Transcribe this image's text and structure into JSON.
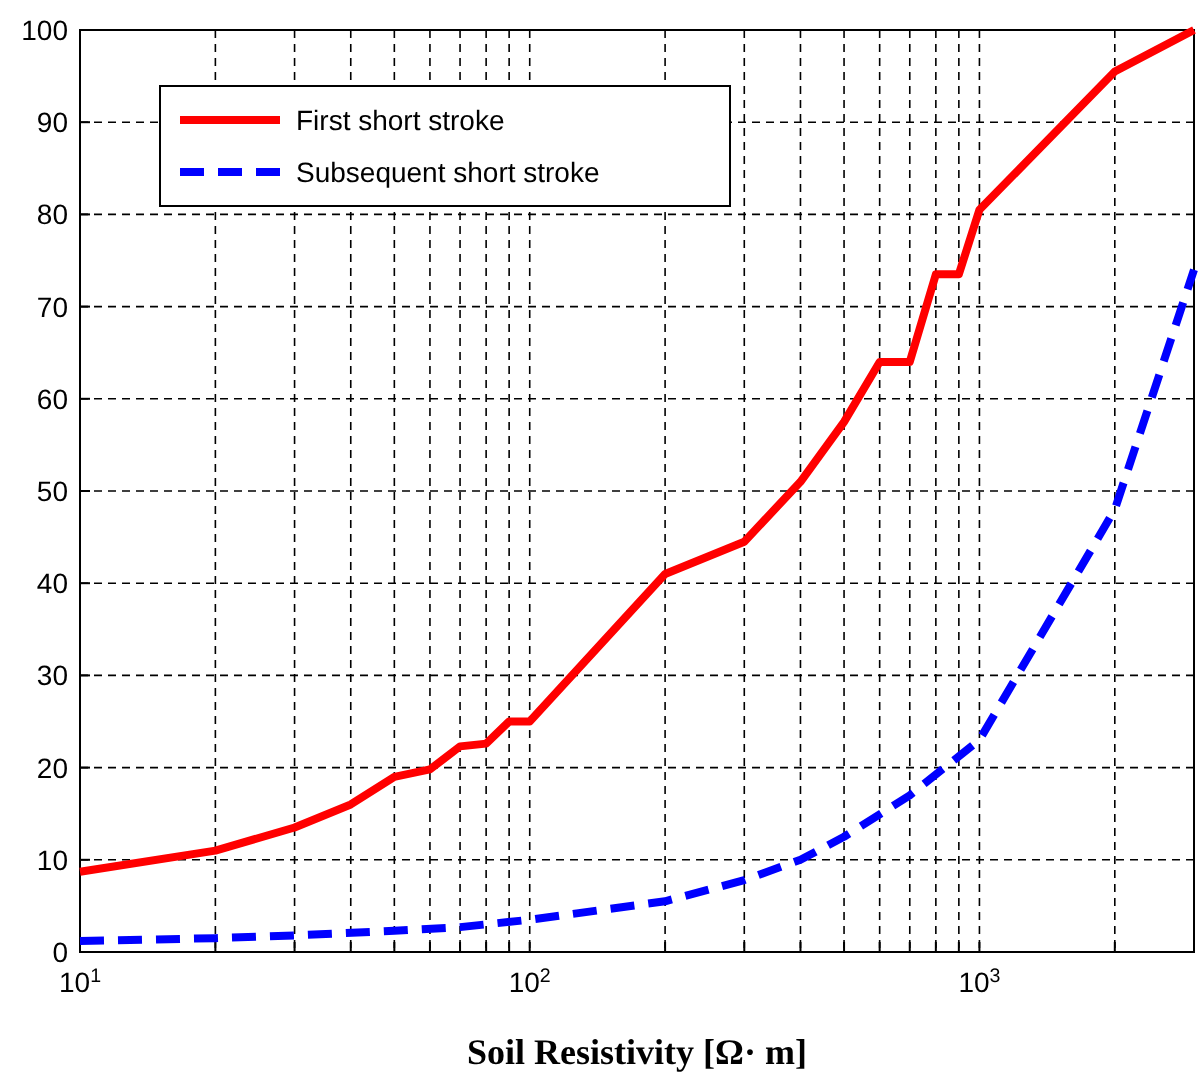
{
  "chart_data": {
    "type": "line",
    "xlabel": "Soil Resistivity [Ω· m]",
    "log": "x",
    "grid": true,
    "legend": "top left",
    "xlim": [
      10,
      3000
    ],
    "ylim": [
      0,
      100
    ],
    "xticks": [
      {
        "value": 10,
        "label": "10$^{1}$"
      },
      {
        "value": 20,
        "label": null
      },
      {
        "value": 30,
        "label": null
      },
      {
        "value": 40,
        "label": null
      },
      {
        "value": 50,
        "label": null
      },
      {
        "value": 60,
        "label": null
      },
      {
        "value": 70,
        "label": null
      },
      {
        "value": 80,
        "label": null
      },
      {
        "value": 90,
        "label": null
      },
      {
        "value": 100,
        "label": "10$^{2}$"
      },
      {
        "value": 200,
        "label": null
      },
      {
        "value": 300,
        "label": null
      },
      {
        "value": 400,
        "label": null
      },
      {
        "value": 500,
        "label": null
      },
      {
        "value": 600,
        "label": null
      },
      {
        "value": 700,
        "label": null
      },
      {
        "value": 800,
        "label": null
      },
      {
        "value": 900,
        "label": null
      },
      {
        "value": 1000,
        "label": "10$^{3}$"
      },
      {
        "value": 2000,
        "label": null
      }
    ],
    "yticks": [
      0,
      10,
      20,
      30,
      40,
      50,
      60,
      70,
      80,
      90,
      100
    ],
    "series": [
      {
        "name": "First short stroke",
        "color": "#ff0000",
        "line_style": "solid",
        "x": [
          10,
          20,
          30,
          40,
          50,
          60,
          70,
          80,
          90,
          100,
          200,
          300,
          400,
          500,
          600,
          700,
          800,
          900,
          1000,
          2000,
          3000
        ],
        "values": [
          8.7,
          11,
          13.5,
          16,
          19,
          19.8,
          22.3,
          22.6,
          25,
          25,
          41,
          44.5,
          51,
          57.5,
          64,
          64,
          73.5,
          73.5,
          80.5,
          95.5,
          100
        ]
      },
      {
        "name": "Subsequent short stroke",
        "color": "#0000ff",
        "line_style": "dashed",
        "x": [
          10,
          20,
          30,
          50,
          70,
          100,
          200,
          300,
          400,
          500,
          700,
          1000,
          2000,
          3000
        ],
        "values": [
          1.2,
          1.5,
          1.8,
          2.3,
          2.7,
          3.5,
          5.5,
          7.8,
          10,
          12.5,
          17,
          23,
          48,
          74
        ]
      }
    ]
  }
}
